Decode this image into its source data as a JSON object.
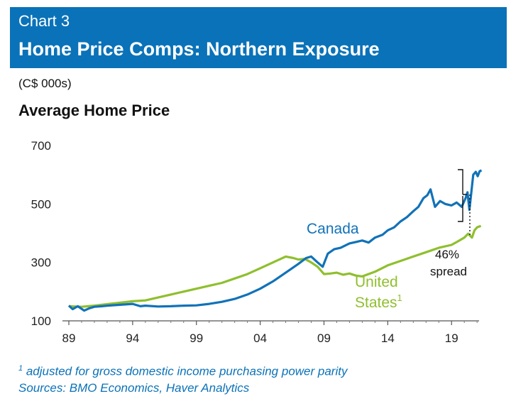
{
  "header": {
    "chart_number": "Chart 3",
    "title": "Home Price Comps: Northern Exposure"
  },
  "units": "(C$ 000s)",
  "footnote": {
    "marker": "1",
    "text": " adjusted for gross domestic income purchasing power parity",
    "sources": "Sources: BMO Economics, Haver Analytics"
  },
  "colors": {
    "header": "#0a72b8",
    "canada": "#1172b8",
    "united_states": "#8fbf2e"
  },
  "chart_data": {
    "type": "line",
    "title": "Average Home Price",
    "xlabel": "",
    "ylabel": "",
    "xlim": [
      1989,
      2021.9
    ],
    "ylim": [
      100,
      700
    ],
    "x_ticks": [
      {
        "value": 1989,
        "label": "89"
      },
      {
        "value": 1994,
        "label": "94"
      },
      {
        "value": 1999,
        "label": "99"
      },
      {
        "value": 2004,
        "label": "04"
      },
      {
        "value": 2009,
        "label": "09"
      },
      {
        "value": 2014,
        "label": "14"
      },
      {
        "value": 2019,
        "label": "19"
      }
    ],
    "y_ticks": [
      100,
      300,
      500,
      700
    ],
    "grid": false,
    "legend": "none",
    "series": [
      {
        "name": "Canada",
        "color": "#1172b8",
        "x": [
          1989,
          1989.3,
          1989.7,
          1990.2,
          1990.6,
          1991,
          1991.6,
          1992,
          1993,
          1994,
          1994.6,
          1995,
          1996,
          1997,
          1998,
          1999,
          2000,
          2001,
          2002,
          2003,
          2004,
          2005,
          2006,
          2007,
          2007.6,
          2008,
          2008.5,
          2008.9,
          2009.3,
          2009.8,
          2010.3,
          2011,
          2011.5,
          2012,
          2012.5,
          2013,
          2013.6,
          2014,
          2014.5,
          2015,
          2015.5,
          2016,
          2016.4,
          2016.8,
          2017.1,
          2017.35,
          2017.7,
          2018.1,
          2018.5,
          2019,
          2019.4,
          2019.8,
          2020.1,
          2020.25,
          2020.4,
          2020.55,
          2020.7,
          2020.9,
          2021.05,
          2021.2,
          2021.35
        ],
        "values": [
          152,
          140,
          150,
          135,
          143,
          148,
          150,
          152,
          155,
          158,
          150,
          152,
          149,
          150,
          152,
          153,
          158,
          165,
          175,
          190,
          210,
          235,
          265,
          295,
          315,
          320,
          300,
          285,
          330,
          345,
          350,
          365,
          370,
          375,
          368,
          385,
          395,
          410,
          420,
          440,
          455,
          475,
          490,
          520,
          530,
          550,
          490,
          510,
          500,
          495,
          505,
          490,
          520,
          540,
          480,
          540,
          600,
          610,
          595,
          612,
          615
        ]
      },
      {
        "name": "United States",
        "color": "#8fbf2e",
        "x": [
          1989,
          1990,
          1991,
          1992,
          1993,
          1994,
          1995,
          1996,
          1997,
          1998,
          1999,
          2000,
          2001,
          2002,
          2003,
          2004,
          2005,
          2006,
          2006.6,
          2007,
          2007.5,
          2008,
          2008.5,
          2009,
          2009.5,
          2010,
          2010.5,
          2011,
          2011.5,
          2012,
          2013,
          2014,
          2015,
          2016,
          2017,
          2018,
          2019,
          2019.5,
          2020,
          2020.3,
          2020.6,
          2020.8,
          2021,
          2021.3
        ],
        "values": [
          150,
          148,
          152,
          157,
          162,
          167,
          170,
          180,
          190,
          200,
          210,
          220,
          230,
          245,
          260,
          280,
          300,
          320,
          315,
          310,
          312,
          300,
          285,
          260,
          262,
          265,
          258,
          262,
          255,
          252,
          268,
          290,
          305,
          320,
          335,
          350,
          360,
          372,
          385,
          398,
          385,
          410,
          420,
          425
        ]
      }
    ],
    "annotations": {
      "canada_label": "Canada",
      "us_label": "United",
      "us_label_line2": "States",
      "us_label_sup": "1",
      "spread_value": "46%",
      "spread_word": "spread"
    }
  }
}
